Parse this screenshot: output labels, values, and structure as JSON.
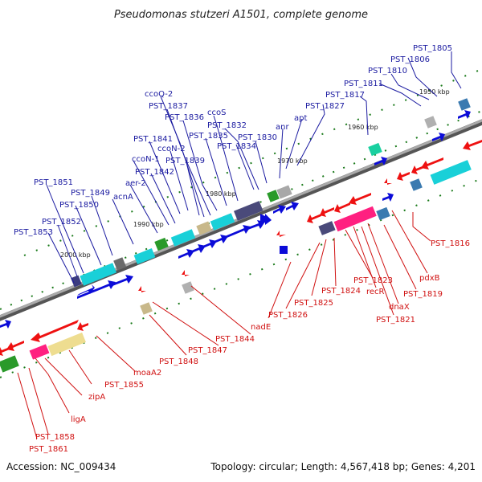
{
  "title": "Pseudomonas stutzeri A1501, complete genome",
  "footer": {
    "accession": "Accession: NC_009434",
    "summary": "Topology: circular; Length: 4,567,418 bp; Genes: 4,201"
  },
  "scale_marks": [
    "2000 kbp",
    "1990 kbp",
    "1980 kbp",
    "1970 kbp",
    "1960 kbp",
    "1950 kbp"
  ],
  "colors": {
    "forward_label": "#1a1aa0",
    "reverse_label": "#d01010",
    "forward_gene": "#0b0bd8",
    "reverse_gene": "#ee1111",
    "axis": "#888888",
    "tick": "#1a7a1a"
  },
  "forward_labels": [
    "PST_1805",
    "PST_1806",
    "PST_1810",
    "PST_1811",
    "PST_1817",
    "PST_1827",
    "apt",
    "anr",
    "PST_1830",
    "PST_1834",
    "PST_1832",
    "ccoS",
    "PST_1835",
    "PST_1836",
    "PST_1837",
    "ccoQ-2",
    "PST_1841",
    "ccoN-2",
    "PST_1839",
    "ccoN-1",
    "PST_1842",
    "aer-2",
    "acnA",
    "PST_1849",
    "PST_1850",
    "PST_1851",
    "PST_1852",
    "PST_1853"
  ],
  "reverse_labels": [
    "PST_1816",
    "pdxB",
    "PST_1819",
    "PST_1821",
    "dnaX",
    "recR",
    "PST_1823",
    "PST_1824",
    "PST_1825",
    "PST_1826",
    "nadE",
    "PST_1844",
    "PST_1847",
    "PST_1848",
    "moaA2",
    "PST_1855",
    "zipA",
    "ligA",
    "PST_1858",
    "PST_1861"
  ]
}
